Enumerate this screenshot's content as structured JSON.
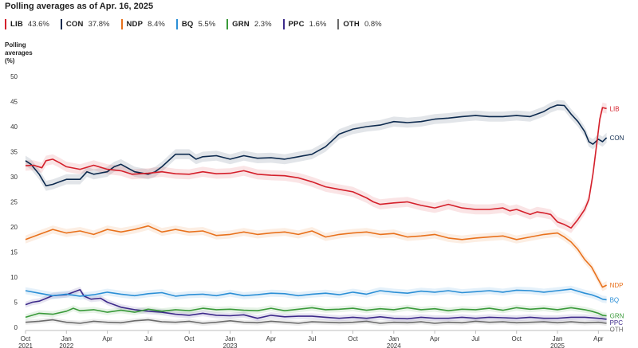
{
  "chart_data": {
    "type": "line",
    "title": "Polling averages as of Apr. 16, 2025",
    "ylabel": "Polling averages (%)",
    "ylabel_lines": [
      "Polling",
      "averages",
      "(%)"
    ],
    "xlabel": "",
    "ylim": [
      0,
      50
    ],
    "yticks": [
      0,
      5,
      10,
      15,
      20,
      25,
      30,
      35,
      40,
      45,
      50
    ],
    "grid": false,
    "legend_position": "top",
    "xdomain": [
      0,
      43.5
    ],
    "xticks": [
      {
        "label": [
          "Oct",
          "2021"
        ],
        "t": 0
      },
      {
        "label": [
          "Jan",
          "2022"
        ],
        "t": 3
      },
      {
        "label": [
          "Apr",
          ""
        ],
        "t": 6
      },
      {
        "label": [
          "Jul",
          ""
        ],
        "t": 9
      },
      {
        "label": [
          "Oct",
          ""
        ],
        "t": 12
      },
      {
        "label": [
          "Jan",
          "2023"
        ],
        "t": 15
      },
      {
        "label": [
          "Apr",
          ""
        ],
        "t": 18
      },
      {
        "label": [
          "Jul",
          ""
        ],
        "t": 21
      },
      {
        "label": [
          "Oct",
          ""
        ],
        "t": 24
      },
      {
        "label": [
          "Jan",
          "2024"
        ],
        "t": 27
      },
      {
        "label": [
          "Apr",
          ""
        ],
        "t": 30
      },
      {
        "label": [
          "Jul",
          ""
        ],
        "t": 33
      },
      {
        "label": [
          "Oct",
          ""
        ],
        "t": 36
      },
      {
        "label": [
          "Jan",
          "2025"
        ],
        "t": 39
      },
      {
        "label": [
          "Apr",
          ""
        ],
        "t": 42
      }
    ],
    "series": [
      {
        "name": "LIB",
        "value_label": "43.6%",
        "end_label": "LIB",
        "color": "#d4202b",
        "band": 1.0,
        "t": [
          0,
          0.6,
          1.2,
          1.5,
          2.0,
          2.5,
          3.0,
          4.0,
          5.0,
          6.0,
          7.0,
          7.8,
          9.0,
          10.0,
          11.0,
          12.0,
          13.0,
          14.0,
          15.0,
          16.0,
          17.0,
          18.0,
          19.0,
          20.0,
          21.0,
          22.0,
          23.0,
          24.0,
          25.0,
          25.5,
          26.0,
          27.0,
          28.0,
          29.0,
          30.0,
          31.0,
          32.0,
          33.0,
          34.0,
          35.0,
          35.5,
          36.0,
          37.0,
          37.5,
          38.0,
          38.5,
          39.0,
          39.5,
          40.0,
          40.5,
          41.0,
          41.3,
          41.6,
          41.9,
          42.1,
          42.3,
          42.6
        ],
        "y": [
          32.2,
          32.3,
          31.8,
          33.2,
          33.5,
          32.8,
          32.0,
          31.5,
          32.3,
          31.5,
          31.2,
          30.5,
          30.7,
          31.0,
          30.6,
          30.5,
          31.0,
          30.6,
          30.7,
          31.2,
          30.5,
          30.3,
          30.2,
          29.8,
          29.0,
          28.0,
          27.5,
          27.0,
          25.8,
          25.0,
          24.5,
          24.8,
          25.0,
          24.3,
          23.8,
          24.5,
          23.8,
          23.5,
          23.5,
          23.8,
          23.2,
          23.5,
          22.5,
          23.0,
          22.8,
          22.5,
          21.0,
          20.5,
          19.8,
          21.5,
          23.5,
          25.5,
          30.5,
          37.0,
          41.5,
          43.8,
          43.6
        ]
      },
      {
        "name": "CON",
        "value_label": "37.8%",
        "end_label": "CON",
        "color": "#0d2a4e",
        "band": 1.0,
        "t": [
          0,
          0.4,
          1.0,
          1.5,
          2.0,
          2.5,
          3.0,
          4.0,
          4.5,
          5.0,
          6.0,
          6.5,
          7.0,
          8.0,
          9.0,
          9.5,
          10.0,
          11.0,
          12.0,
          12.5,
          13.0,
          14.0,
          15.0,
          16.0,
          17.0,
          18.0,
          19.0,
          20.0,
          21.0,
          22.0,
          23.0,
          24.0,
          25.0,
          26.0,
          27.0,
          28.0,
          29.0,
          30.0,
          31.0,
          32.0,
          33.0,
          34.0,
          35.0,
          36.0,
          37.0,
          38.0,
          38.5,
          39.0,
          39.5,
          40.0,
          40.5,
          41.0,
          41.3,
          41.6,
          42.0,
          42.3,
          42.6
        ],
        "y": [
          33.2,
          32.5,
          30.5,
          28.2,
          28.5,
          29.0,
          29.5,
          29.5,
          31.0,
          30.5,
          31.0,
          32.0,
          32.5,
          31.0,
          30.5,
          31.0,
          32.0,
          34.5,
          34.5,
          33.5,
          34.0,
          34.2,
          33.5,
          34.2,
          33.7,
          33.8,
          33.5,
          34.0,
          34.5,
          36.0,
          38.5,
          39.5,
          40.0,
          40.3,
          41.0,
          40.8,
          41.0,
          41.5,
          41.7,
          42.0,
          42.2,
          42.0,
          42.0,
          42.2,
          42.0,
          43.0,
          43.8,
          44.3,
          44.2,
          42.5,
          41.0,
          39.0,
          37.0,
          36.5,
          37.5,
          37.0,
          37.8
        ]
      },
      {
        "name": "NDP",
        "value_label": "8.4%",
        "end_label": "NDP",
        "color": "#e8711c",
        "band": 0.8,
        "t": [
          0,
          1.0,
          2.0,
          3.0,
          4.0,
          5.0,
          6.0,
          7.0,
          8.0,
          9.0,
          10.0,
          11.0,
          12.0,
          13.0,
          14.0,
          15.0,
          16.0,
          17.0,
          18.0,
          19.0,
          20.0,
          21.0,
          22.0,
          23.0,
          24.0,
          25.0,
          26.0,
          27.0,
          28.0,
          29.0,
          30.0,
          31.0,
          32.0,
          33.0,
          34.0,
          35.0,
          36.0,
          37.0,
          38.0,
          39.0,
          39.5,
          40.0,
          40.5,
          41.0,
          41.5,
          42.0,
          42.3,
          42.6
        ],
        "y": [
          17.5,
          18.5,
          19.5,
          18.8,
          19.2,
          18.5,
          19.5,
          19.0,
          19.5,
          20.2,
          19.0,
          19.5,
          19.0,
          19.2,
          18.3,
          18.5,
          19.0,
          18.5,
          18.8,
          19.0,
          18.5,
          19.2,
          18.0,
          18.5,
          18.8,
          19.0,
          18.5,
          18.7,
          18.0,
          18.2,
          18.5,
          17.8,
          17.5,
          17.8,
          18.0,
          18.2,
          17.5,
          18.0,
          18.5,
          18.8,
          18.0,
          17.0,
          15.5,
          13.5,
          12.0,
          9.5,
          8.0,
          8.4
        ]
      },
      {
        "name": "BQ",
        "value_label": "5.5%",
        "end_label": "BQ",
        "color": "#2b8fd6",
        "band": 0.7,
        "t": [
          0,
          1.0,
          2.0,
          3.0,
          4.0,
          5.0,
          6.0,
          7.0,
          8.0,
          9.0,
          10.0,
          11.0,
          12.0,
          13.0,
          14.0,
          15.0,
          16.0,
          17.0,
          18.0,
          19.0,
          20.0,
          21.0,
          22.0,
          23.0,
          24.0,
          25.0,
          26.0,
          27.0,
          28.0,
          29.0,
          30.0,
          31.0,
          32.0,
          33.0,
          34.0,
          35.0,
          36.0,
          37.0,
          38.0,
          39.0,
          40.0,
          41.0,
          41.5,
          42.0,
          42.3,
          42.6
        ],
        "y": [
          7.3,
          6.8,
          6.3,
          6.6,
          6.2,
          6.5,
          7.0,
          6.6,
          6.3,
          6.7,
          6.9,
          6.2,
          6.5,
          6.6,
          6.3,
          6.8,
          6.3,
          6.5,
          6.8,
          6.7,
          6.3,
          6.6,
          6.8,
          6.5,
          7.0,
          6.6,
          7.3,
          7.0,
          6.8,
          7.2,
          7.0,
          7.3,
          6.9,
          7.1,
          7.3,
          7.0,
          7.4,
          7.3,
          7.0,
          7.3,
          7.6,
          6.8,
          6.5,
          6.0,
          5.6,
          5.5
        ]
      },
      {
        "name": "GRN",
        "value_label": "2.3%",
        "end_label": "GRN",
        "color": "#3a9a3a",
        "band": 0.6,
        "t": [
          0,
          1.0,
          2.0,
          3.0,
          3.5,
          4.0,
          5.0,
          6.0,
          7.0,
          8.0,
          9.0,
          10.0,
          11.0,
          12.0,
          13.0,
          14.0,
          15.0,
          16.0,
          17.0,
          18.0,
          19.0,
          20.0,
          21.0,
          22.0,
          23.0,
          24.0,
          25.0,
          26.0,
          27.0,
          28.0,
          29.0,
          30.0,
          31.0,
          32.0,
          33.0,
          34.0,
          35.0,
          36.0,
          37.0,
          38.0,
          39.0,
          40.0,
          41.0,
          41.5,
          42.0,
          42.3,
          42.6
        ],
        "y": [
          2.0,
          2.8,
          2.6,
          3.2,
          3.8,
          3.3,
          3.5,
          3.0,
          3.4,
          3.0,
          3.6,
          3.2,
          3.5,
          3.3,
          3.8,
          3.5,
          3.6,
          3.4,
          3.3,
          3.8,
          3.3,
          3.6,
          3.9,
          3.5,
          3.6,
          3.8,
          3.4,
          3.7,
          3.5,
          3.9,
          3.5,
          3.7,
          3.3,
          3.6,
          3.5,
          3.8,
          3.4,
          3.9,
          3.6,
          3.8,
          3.5,
          3.9,
          3.5,
          3.2,
          2.8,
          2.4,
          2.3
        ]
      },
      {
        "name": "PPC",
        "value_label": "1.6%",
        "end_label": "PPC",
        "color": "#3d2a8a",
        "band": 0.6,
        "t": [
          0,
          0.5,
          1.0,
          2.0,
          3.0,
          4.0,
          4.3,
          4.8,
          5.5,
          6.0,
          7.0,
          8.0,
          9.0,
          10.0,
          11.0,
          12.0,
          13.0,
          14.0,
          15.0,
          16.0,
          17.0,
          18.0,
          19.0,
          20.0,
          21.0,
          22.0,
          23.0,
          24.0,
          25.0,
          26.0,
          27.0,
          28.0,
          29.0,
          30.0,
          31.0,
          32.0,
          33.0,
          34.0,
          35.0,
          36.0,
          37.0,
          38.0,
          39.0,
          40.0,
          41.0,
          42.0,
          42.3,
          42.6
        ],
        "y": [
          4.5,
          5.0,
          5.2,
          6.3,
          6.5,
          7.5,
          6.2,
          5.6,
          5.8,
          5.0,
          4.0,
          3.5,
          3.2,
          3.0,
          2.6,
          2.4,
          2.8,
          2.4,
          2.3,
          2.5,
          1.8,
          2.4,
          2.1,
          2.2,
          2.2,
          2.0,
          1.8,
          2.0,
          1.8,
          2.1,
          1.8,
          1.7,
          2.0,
          1.8,
          1.8,
          2.0,
          1.8,
          2.0,
          1.9,
          1.8,
          2.0,
          1.8,
          1.8,
          2.0,
          2.0,
          1.8,
          1.7,
          1.6
        ]
      },
      {
        "name": "OTH",
        "value_label": "0.8%",
        "end_label": "OTH",
        "color": "#6b6b6b",
        "band": 0.5,
        "t": [
          0,
          1.0,
          2.0,
          3.0,
          4.0,
          5.0,
          6.0,
          7.0,
          8.0,
          9.0,
          10.0,
          11.0,
          12.0,
          13.0,
          14.0,
          15.0,
          16.0,
          17.0,
          18.0,
          19.0,
          20.0,
          21.0,
          22.0,
          23.0,
          24.0,
          25.0,
          26.0,
          27.0,
          28.0,
          29.0,
          30.0,
          31.0,
          32.0,
          33.0,
          34.0,
          35.0,
          36.0,
          37.0,
          38.0,
          39.0,
          40.0,
          41.0,
          42.0,
          42.3,
          42.6
        ],
        "y": [
          1.0,
          1.2,
          1.5,
          1.0,
          0.8,
          1.2,
          1.0,
          0.9,
          1.3,
          1.5,
          1.1,
          1.0,
          1.2,
          0.8,
          1.0,
          1.3,
          1.0,
          0.9,
          1.2,
          1.0,
          0.8,
          1.1,
          1.0,
          0.9,
          1.0,
          1.2,
          0.8,
          1.0,
          0.9,
          1.1,
          0.8,
          1.0,
          0.9,
          1.2,
          1.0,
          1.1,
          0.9,
          1.0,
          1.1,
          0.9,
          1.1,
          0.9,
          1.0,
          0.9,
          0.8
        ]
      }
    ]
  }
}
